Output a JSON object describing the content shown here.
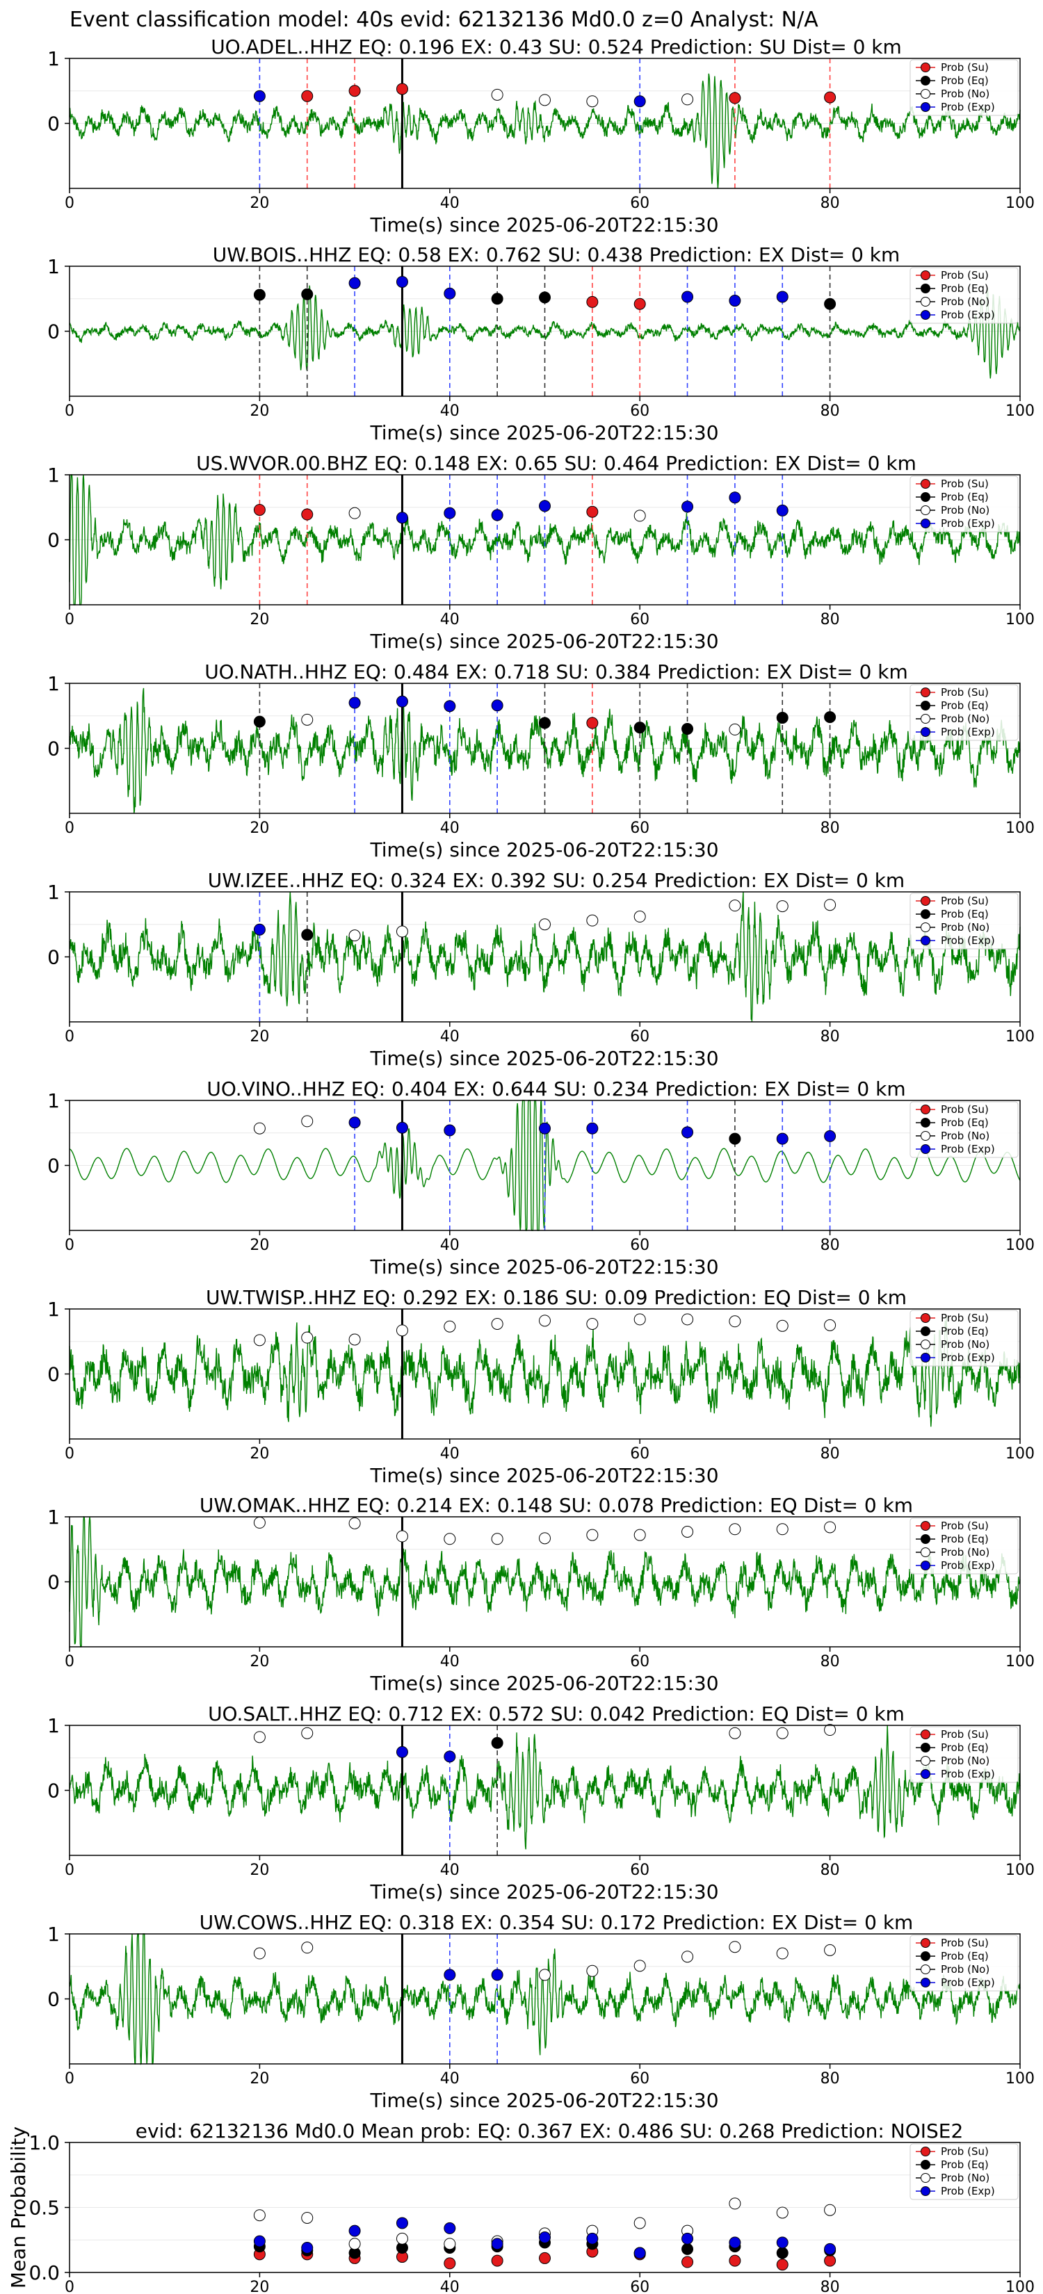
{
  "figure": {
    "title": "Event classification model: 40s evid: 62132136 Md0.0 z=0 Analyst: N/A"
  },
  "colors": {
    "su": "#e31a1c",
    "eq": "#000000",
    "no": "#ffffff",
    "exp": "#0000dd",
    "waveform": "#008000",
    "su_line": "#ff4444",
    "eq_line": "#333333",
    "exp_line": "#3344ff"
  },
  "legend": {
    "position": "top-right",
    "entries": [
      {
        "key": "su",
        "label": "Prob (Su)"
      },
      {
        "key": "eq",
        "label": "Prob (Eq)"
      },
      {
        "key": "no",
        "label": "Prob (No)"
      },
      {
        "key": "exp",
        "label": "Prob (Exp)"
      }
    ]
  },
  "chart_data": [
    {
      "type": "line",
      "title": "UO.ADEL..HHZ   EQ: 0.196  EX: 0.43  SU: 0.524   Prediction: SU    Dist= 0 km",
      "xlabel": "Time(s) since 2025-06-20T22:15:30",
      "xlim": [
        0,
        100
      ],
      "ylim": [
        -1,
        1
      ],
      "xticks": [
        0,
        20,
        40,
        60,
        80,
        100
      ],
      "yticks": [
        1,
        0
      ],
      "amplitude": 0.22,
      "bursts": [
        {
          "t": 35,
          "a": 0.13
        },
        {
          "t": 48,
          "a": 0.12
        },
        {
          "t": 68,
          "a": 0.38
        }
      ],
      "seed": 11,
      "pick_line": 35,
      "points": [
        {
          "t": 20,
          "p": 0.42,
          "c": "exp"
        },
        {
          "t": 25,
          "p": 0.42,
          "c": "su"
        },
        {
          "t": 30,
          "p": 0.5,
          "c": "su"
        },
        {
          "t": 35,
          "p": 0.53,
          "c": "su"
        },
        {
          "t": 45,
          "p": 0.44,
          "c": "no"
        },
        {
          "t": 50,
          "p": 0.36,
          "c": "no"
        },
        {
          "t": 55,
          "p": 0.34,
          "c": "no"
        },
        {
          "t": 60,
          "p": 0.34,
          "c": "exp"
        },
        {
          "t": 65,
          "p": 0.37,
          "c": "no"
        },
        {
          "t": 70,
          "p": 0.39,
          "c": "su"
        },
        {
          "t": 80,
          "p": 0.4,
          "c": "su"
        }
      ]
    },
    {
      "type": "line",
      "title": "UW.BOIS..HHZ   EQ: 0.58  EX: 0.762  SU: 0.438   Prediction: EX    Dist= 0 km",
      "xlabel": "Time(s) since 2025-06-20T22:15:30",
      "xlim": [
        0,
        100
      ],
      "ylim": [
        -1,
        1
      ],
      "xticks": [
        0,
        20,
        40,
        60,
        80,
        100
      ],
      "yticks": [
        1,
        0
      ],
      "amplitude": 0.12,
      "bursts": [
        {
          "t": 25,
          "a": 0.3
        },
        {
          "t": 36,
          "a": 0.18
        },
        {
          "t": 97,
          "a": 0.3
        }
      ],
      "seed": 23,
      "pick_line": 35,
      "points": [
        {
          "t": 20,
          "p": 0.56,
          "c": "eq"
        },
        {
          "t": 25,
          "p": 0.57,
          "c": "eq"
        },
        {
          "t": 30,
          "p": 0.74,
          "c": "exp"
        },
        {
          "t": 35,
          "p": 0.76,
          "c": "exp"
        },
        {
          "t": 40,
          "p": 0.58,
          "c": "exp"
        },
        {
          "t": 45,
          "p": 0.5,
          "c": "eq"
        },
        {
          "t": 50,
          "p": 0.52,
          "c": "eq"
        },
        {
          "t": 55,
          "p": 0.45,
          "c": "su"
        },
        {
          "t": 60,
          "p": 0.42,
          "c": "su"
        },
        {
          "t": 65,
          "p": 0.53,
          "c": "exp"
        },
        {
          "t": 70,
          "p": 0.47,
          "c": "exp"
        },
        {
          "t": 75,
          "p": 0.53,
          "c": "exp"
        },
        {
          "t": 80,
          "p": 0.42,
          "c": "eq"
        }
      ]
    },
    {
      "type": "line",
      "title": "US.WVOR.00.BHZ   EQ: 0.148  EX: 0.65  SU: 0.464   Prediction: EX    Dist= 0 km",
      "xlabel": "Time(s) since 2025-06-20T22:15:30",
      "xlim": [
        0,
        100
      ],
      "ylim": [
        -1,
        1
      ],
      "xticks": [
        0,
        20,
        40,
        60,
        80,
        100
      ],
      "yticks": [
        1,
        0
      ],
      "amplitude": 0.28,
      "bursts": [
        {
          "t": 0.5,
          "a": 0.6
        },
        {
          "t": 16,
          "a": 0.3
        }
      ],
      "seed": 37,
      "pick_line": 35,
      "points": [
        {
          "t": 20,
          "p": 0.46,
          "c": "su"
        },
        {
          "t": 25,
          "p": 0.39,
          "c": "su"
        },
        {
          "t": 30,
          "p": 0.41,
          "c": "no"
        },
        {
          "t": 35,
          "p": 0.34,
          "c": "exp"
        },
        {
          "t": 40,
          "p": 0.41,
          "c": "exp"
        },
        {
          "t": 45,
          "p": 0.38,
          "c": "exp"
        },
        {
          "t": 50,
          "p": 0.52,
          "c": "exp"
        },
        {
          "t": 55,
          "p": 0.43,
          "c": "su"
        },
        {
          "t": 60,
          "p": 0.37,
          "c": "no"
        },
        {
          "t": 65,
          "p": 0.51,
          "c": "exp"
        },
        {
          "t": 70,
          "p": 0.65,
          "c": "exp"
        },
        {
          "t": 75,
          "p": 0.45,
          "c": "exp"
        }
      ]
    },
    {
      "type": "line",
      "title": "UO.NATH..HHZ   EQ: 0.484  EX: 0.718  SU: 0.384   Prediction: EX    Dist= 0 km",
      "xlabel": "Time(s) since 2025-06-20T22:15:30",
      "xlim": [
        0,
        100
      ],
      "ylim": [
        -1,
        1
      ],
      "xticks": [
        0,
        20,
        40,
        60,
        80,
        100
      ],
      "yticks": [
        1,
        0
      ],
      "amplitude": 0.42,
      "bursts": [
        {
          "t": 7,
          "a": 0.35
        },
        {
          "t": 35,
          "a": 0.25
        }
      ],
      "seed": 41,
      "pick_line": 35,
      "points": [
        {
          "t": 20,
          "p": 0.41,
          "c": "eq"
        },
        {
          "t": 25,
          "p": 0.44,
          "c": "no"
        },
        {
          "t": 30,
          "p": 0.7,
          "c": "exp"
        },
        {
          "t": 35,
          "p": 0.72,
          "c": "exp"
        },
        {
          "t": 40,
          "p": 0.65,
          "c": "exp"
        },
        {
          "t": 45,
          "p": 0.66,
          "c": "exp"
        },
        {
          "t": 50,
          "p": 0.39,
          "c": "eq"
        },
        {
          "t": 55,
          "p": 0.39,
          "c": "su"
        },
        {
          "t": 60,
          "p": 0.32,
          "c": "eq"
        },
        {
          "t": 65,
          "p": 0.3,
          "c": "eq"
        },
        {
          "t": 70,
          "p": 0.29,
          "c": "no"
        },
        {
          "t": 75,
          "p": 0.47,
          "c": "eq"
        },
        {
          "t": 80,
          "p": 0.48,
          "c": "eq"
        }
      ]
    },
    {
      "type": "line",
      "title": "UW.IZEE..HHZ   EQ: 0.324  EX: 0.392  SU: 0.254   Prediction: EX    Dist= 0 km",
      "xlabel": "Time(s) since 2025-06-20T22:15:30",
      "xlim": [
        0,
        100
      ],
      "ylim": [
        -1,
        1
      ],
      "xticks": [
        0,
        20,
        40,
        60,
        80,
        100
      ],
      "yticks": [
        1,
        0
      ],
      "amplitude": 0.45,
      "bursts": [
        {
          "t": 23,
          "a": 0.35
        },
        {
          "t": 72,
          "a": 0.35
        }
      ],
      "seed": 53,
      "pick_line": 35,
      "points": [
        {
          "t": 20,
          "p": 0.42,
          "c": "exp"
        },
        {
          "t": 25,
          "p": 0.34,
          "c": "eq"
        },
        {
          "t": 30,
          "p": 0.33,
          "c": "no"
        },
        {
          "t": 35,
          "p": 0.39,
          "c": "no"
        },
        {
          "t": 50,
          "p": 0.5,
          "c": "no"
        },
        {
          "t": 55,
          "p": 0.56,
          "c": "no"
        },
        {
          "t": 60,
          "p": 0.62,
          "c": "no"
        },
        {
          "t": 70,
          "p": 0.79,
          "c": "no"
        },
        {
          "t": 75,
          "p": 0.78,
          "c": "no"
        },
        {
          "t": 80,
          "p": 0.8,
          "c": "no"
        }
      ]
    },
    {
      "type": "line",
      "title": "UO.VINO..HHZ   EQ: 0.404  EX: 0.644  SU: 0.234   Prediction: EX    Dist= 0 km",
      "xlabel": "Time(s) since 2025-06-20T22:15:30",
      "xlim": [
        0,
        100
      ],
      "ylim": [
        -1,
        1
      ],
      "xticks": [
        0,
        20,
        40,
        60,
        80,
        100
      ],
      "yticks": [
        1,
        0
      ],
      "amplitude": 0.24,
      "smooth": true,
      "bursts": [
        {
          "t": 35,
          "a": 0.2
        },
        {
          "t": 48.5,
          "a": 0.8
        }
      ],
      "seed": 67,
      "pick_line": 35,
      "points": [
        {
          "t": 20,
          "p": 0.57,
          "c": "no"
        },
        {
          "t": 25,
          "p": 0.68,
          "c": "no"
        },
        {
          "t": 30,
          "p": 0.66,
          "c": "exp"
        },
        {
          "t": 35,
          "p": 0.58,
          "c": "exp"
        },
        {
          "t": 40,
          "p": 0.54,
          "c": "exp"
        },
        {
          "t": 50,
          "p": 0.57,
          "c": "exp"
        },
        {
          "t": 55,
          "p": 0.57,
          "c": "exp"
        },
        {
          "t": 65,
          "p": 0.51,
          "c": "exp"
        },
        {
          "t": 70,
          "p": 0.41,
          "c": "eq"
        },
        {
          "t": 75,
          "p": 0.41,
          "c": "exp"
        },
        {
          "t": 80,
          "p": 0.45,
          "c": "exp"
        }
      ]
    },
    {
      "type": "line",
      "title": "UW.TWISP..HHZ   EQ: 0.292  EX: 0.186  SU: 0.09   Prediction: EQ    Dist= 0 km",
      "xlabel": "Time(s) since 2025-06-20T22:15:30",
      "xlim": [
        0,
        100
      ],
      "ylim": [
        -1,
        1
      ],
      "xticks": [
        0,
        20,
        40,
        60,
        80,
        100
      ],
      "yticks": [
        1,
        0
      ],
      "amplitude": 0.5,
      "bursts": [
        {
          "t": 24,
          "a": 0.25
        },
        {
          "t": 91,
          "a": 0.3
        }
      ],
      "seed": 79,
      "pick_line": 35,
      "points": [
        {
          "t": 20,
          "p": 0.52,
          "c": "no"
        },
        {
          "t": 25,
          "p": 0.56,
          "c": "no"
        },
        {
          "t": 30,
          "p": 0.53,
          "c": "no"
        },
        {
          "t": 35,
          "p": 0.67,
          "c": "no"
        },
        {
          "t": 40,
          "p": 0.73,
          "c": "no"
        },
        {
          "t": 45,
          "p": 0.77,
          "c": "no"
        },
        {
          "t": 50,
          "p": 0.82,
          "c": "no"
        },
        {
          "t": 55,
          "p": 0.77,
          "c": "no"
        },
        {
          "t": 60,
          "p": 0.84,
          "c": "no"
        },
        {
          "t": 65,
          "p": 0.84,
          "c": "no"
        },
        {
          "t": 70,
          "p": 0.81,
          "c": "no"
        },
        {
          "t": 75,
          "p": 0.74,
          "c": "no"
        },
        {
          "t": 80,
          "p": 0.75,
          "c": "no"
        }
      ]
    },
    {
      "type": "line",
      "title": "UW.OMAK..HHZ   EQ: 0.214  EX: 0.148  SU: 0.078   Prediction: EQ    Dist= 0 km",
      "xlabel": "Time(s) since 2025-06-20T22:15:30",
      "xlim": [
        0,
        100
      ],
      "ylim": [
        -1,
        1
      ],
      "xticks": [
        0,
        20,
        40,
        60,
        80,
        100
      ],
      "yticks": [
        1,
        0
      ],
      "amplitude": 0.4,
      "bursts": [
        {
          "t": 1,
          "a": 0.45
        }
      ],
      "seed": 83,
      "pick_line": 35,
      "points": [
        {
          "t": 20,
          "p": 0.91,
          "c": "no"
        },
        {
          "t": 30,
          "p": 0.9,
          "c": "no"
        },
        {
          "t": 35,
          "p": 0.7,
          "c": "no"
        },
        {
          "t": 40,
          "p": 0.66,
          "c": "no"
        },
        {
          "t": 45,
          "p": 0.66,
          "c": "no"
        },
        {
          "t": 50,
          "p": 0.67,
          "c": "no"
        },
        {
          "t": 55,
          "p": 0.72,
          "c": "no"
        },
        {
          "t": 60,
          "p": 0.72,
          "c": "no"
        },
        {
          "t": 65,
          "p": 0.77,
          "c": "no"
        },
        {
          "t": 70,
          "p": 0.81,
          "c": "no"
        },
        {
          "t": 75,
          "p": 0.81,
          "c": "no"
        },
        {
          "t": 80,
          "p": 0.84,
          "c": "no"
        }
      ]
    },
    {
      "type": "line",
      "title": "UO.SALT..HHZ   EQ: 0.712  EX: 0.572  SU: 0.042   Prediction: EQ    Dist= 0 km",
      "xlabel": "Time(s) since 2025-06-20T22:15:30",
      "xlim": [
        0,
        100
      ],
      "ylim": [
        -1,
        1
      ],
      "xticks": [
        0,
        20,
        40,
        60,
        80,
        100
      ],
      "yticks": [
        1,
        0
      ],
      "amplitude": 0.38,
      "bursts": [
        {
          "t": 48,
          "a": 0.35
        },
        {
          "t": 86,
          "a": 0.3
        }
      ],
      "seed": 97,
      "pick_line": 35,
      "points": [
        {
          "t": 20,
          "p": 0.82,
          "c": "no"
        },
        {
          "t": 25,
          "p": 0.88,
          "c": "no"
        },
        {
          "t": 35,
          "p": 0.59,
          "c": "exp"
        },
        {
          "t": 40,
          "p": 0.52,
          "c": "exp"
        },
        {
          "t": 45,
          "p": 0.73,
          "c": "eq"
        },
        {
          "t": 70,
          "p": 0.88,
          "c": "no"
        },
        {
          "t": 75,
          "p": 0.88,
          "c": "no"
        },
        {
          "t": 80,
          "p": 0.93,
          "c": "no"
        }
      ]
    },
    {
      "type": "line",
      "title": "UW.COWS..HHZ   EQ: 0.318  EX: 0.354  SU: 0.172   Prediction: EX    Dist= 0 km",
      "xlabel": "Time(s) since 2025-06-20T22:15:30",
      "xlim": [
        0,
        100
      ],
      "ylim": [
        -1,
        1
      ],
      "xticks": [
        0,
        20,
        40,
        60,
        80,
        100
      ],
      "yticks": [
        1,
        0
      ],
      "amplitude": 0.33,
      "bursts": [
        {
          "t": 7.5,
          "a": 0.55
        },
        {
          "t": 50,
          "a": 0.3
        }
      ],
      "seed": 101,
      "pick_line": 35,
      "points": [
        {
          "t": 20,
          "p": 0.7,
          "c": "no"
        },
        {
          "t": 25,
          "p": 0.79,
          "c": "no"
        },
        {
          "t": 40,
          "p": 0.37,
          "c": "exp"
        },
        {
          "t": 45,
          "p": 0.37,
          "c": "exp"
        },
        {
          "t": 50,
          "p": 0.37,
          "c": "no"
        },
        {
          "t": 55,
          "p": 0.43,
          "c": "no"
        },
        {
          "t": 60,
          "p": 0.51,
          "c": "no"
        },
        {
          "t": 65,
          "p": 0.65,
          "c": "no"
        },
        {
          "t": 70,
          "p": 0.8,
          "c": "no"
        },
        {
          "t": 75,
          "p": 0.7,
          "c": "no"
        },
        {
          "t": 80,
          "p": 0.75,
          "c": "no"
        }
      ]
    },
    {
      "type": "scatter",
      "title": "evid: 62132136  Md0.0    Mean prob:    EQ: 0.367  EX: 0.486  SU: 0.268    Prediction: NOISE2",
      "ylabel": "Mean Probability",
      "xlim": [
        0,
        100
      ],
      "ylim": [
        0,
        1
      ],
      "xticks": [
        0,
        20,
        40,
        60,
        80,
        100
      ],
      "yticks": [
        0.0,
        0.5,
        1.0
      ],
      "ytick_labels": [
        "0.0",
        "0.5",
        "1.0"
      ],
      "series": [
        {
          "key": "su",
          "name": "Prob (Su)",
          "x": [
            20,
            25,
            30,
            35,
            40,
            45,
            50,
            55,
            60,
            65,
            70,
            75,
            80
          ],
          "y": [
            0.14,
            0.14,
            0.11,
            0.12,
            0.07,
            0.09,
            0.11,
            0.16,
            0.14,
            0.08,
            0.09,
            0.06,
            0.09
          ]
        },
        {
          "key": "eq",
          "name": "Prob (Eq)",
          "x": [
            20,
            25,
            30,
            35,
            40,
            45,
            50,
            55,
            60,
            65,
            70,
            75,
            80
          ],
          "y": [
            0.2,
            0.17,
            0.15,
            0.19,
            0.19,
            0.2,
            0.23,
            0.22,
            0.15,
            0.18,
            0.2,
            0.15,
            0.17
          ]
        },
        {
          "key": "no",
          "name": "Prob (No)",
          "x": [
            20,
            25,
            30,
            35,
            40,
            45,
            50,
            55,
            60,
            65,
            70,
            75,
            80
          ],
          "y": [
            0.44,
            0.42,
            0.22,
            0.26,
            0.22,
            0.24,
            0.3,
            0.32,
            0.38,
            0.32,
            0.53,
            0.46,
            0.48
          ]
        },
        {
          "key": "exp",
          "name": "Prob (Exp)",
          "x": [
            20,
            25,
            30,
            35,
            40,
            45,
            50,
            55,
            60,
            65,
            70,
            75,
            80
          ],
          "y": [
            0.24,
            0.19,
            0.32,
            0.38,
            0.34,
            0.22,
            0.27,
            0.26,
            0.15,
            0.26,
            0.23,
            0.23,
            0.18
          ]
        }
      ]
    }
  ]
}
